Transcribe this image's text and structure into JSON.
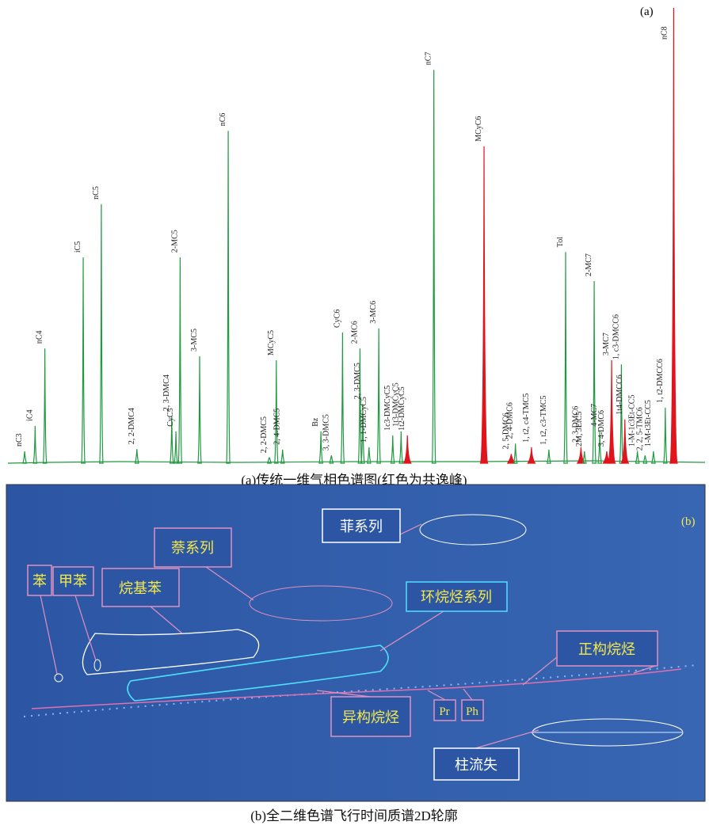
{
  "chart_data": {
    "type": "chromatogram",
    "panel_label": "(a)",
    "caption": "(a)传统一维气相色谱图(红色为共逸峰)",
    "xlim": [
      0,
      100
    ],
    "ylim": [
      0,
      100
    ],
    "colors": {
      "normal": "#1f9a3f",
      "coelution": "#e0141c"
    },
    "peaks": [
      {
        "label": "nC3",
        "x": 2.4,
        "value": 2.6,
        "coelution": false
      },
      {
        "label": "iC4",
        "x": 3.9,
        "value": 8.2,
        "coelution": false
      },
      {
        "label": "nC4",
        "x": 5.3,
        "value": 25.2,
        "coelution": false
      },
      {
        "label": "iC5",
        "x": 10.8,
        "value": 45.2,
        "coelution": false
      },
      {
        "label": "nC5",
        "x": 13.4,
        "value": 56.9,
        "coelution": false
      },
      {
        "label": "2, 2-DMC4",
        "x": 18.5,
        "value": 3.1,
        "coelution": false
      },
      {
        "label": "2, 3-DMC4",
        "x": 23.5,
        "value": 10.4,
        "coelution": false
      },
      {
        "label": "CyC5",
        "x": 24.1,
        "value": 7.0,
        "coelution": false
      },
      {
        "label": "2-MC5",
        "x": 24.7,
        "value": 45.2,
        "coelution": false
      },
      {
        "label": "3-MC5",
        "x": 27.5,
        "value": 23.5,
        "coelution": false
      },
      {
        "label": "nC6",
        "x": 31.6,
        "value": 73.0,
        "coelution": false
      },
      {
        "label": "2, 2-DMC5",
        "x": 37.5,
        "value": 1.2,
        "coelution": false
      },
      {
        "label": "MCyC5",
        "x": 38.5,
        "value": 22.6,
        "coelution": false
      },
      {
        "label": "2, 4-DMC5",
        "x": 39.4,
        "value": 3.0,
        "coelution": false
      },
      {
        "label": "Bz",
        "x": 44.9,
        "value": 7.0,
        "coelution": false
      },
      {
        "label": "3, 3-DMC5",
        "x": 46.4,
        "value": 1.7,
        "coelution": false
      },
      {
        "label": "CyC6",
        "x": 48.0,
        "value": 28.7,
        "coelution": false
      },
      {
        "label": "2-MC6",
        "x": 50.5,
        "value": 25.2,
        "coelution": false
      },
      {
        "label": "2, 3-DMC5",
        "x": 50.9,
        "value": 13.0,
        "coelution": false
      },
      {
        "label": "1, 1-DMCyC5",
        "x": 51.8,
        "value": 3.5,
        "coelution": false
      },
      {
        "label": "3-MC6",
        "x": 53.2,
        "value": 29.6,
        "coelution": false
      },
      {
        "label": "1c3-DMCyC5",
        "x": 55.2,
        "value": 6.1,
        "coelution": false
      },
      {
        "label": "1t3-DMCyC5",
        "x": 56.4,
        "value": 7.0,
        "coelution": false
      },
      {
        "label": "1t2-DMCyC5",
        "x": 57.3,
        "value": 6.1,
        "coelution": true
      },
      {
        "label": "nC7",
        "x": 61.1,
        "value": 86.4,
        "coelution": false
      },
      {
        "label": "MCyC6",
        "x": 68.3,
        "value": 69.6,
        "coelution": true
      },
      {
        "label": "2, 5-DMC6",
        "x": 72.2,
        "value": 2.0,
        "coelution": true
      },
      {
        "label": "2, 4-DMC6",
        "x": 72.8,
        "value": 4.3,
        "coelution": false
      },
      {
        "label": "1, t2, c4-TMC5",
        "x": 75.1,
        "value": 3.5,
        "coelution": true
      },
      {
        "label": "1, t2, c3-TMC5",
        "x": 77.6,
        "value": 3.0,
        "coelution": false
      },
      {
        "label": "Tol",
        "x": 80.0,
        "value": 46.4,
        "coelution": false
      },
      {
        "label": "2, 3-DMC6",
        "x": 82.2,
        "value": 3.5,
        "coelution": true
      },
      {
        "label": "2M, 3EtC5",
        "x": 82.7,
        "value": 2.6,
        "coelution": false
      },
      {
        "label": "2-MC7",
        "x": 84.1,
        "value": 40.0,
        "coelution": false
      },
      {
        "label": "4-MC7",
        "x": 84.9,
        "value": 7.0,
        "coelution": false
      },
      {
        "label": "3, 4-DMC6",
        "x": 85.9,
        "value": 2.6,
        "coelution": true
      },
      {
        "label": "3-MC7",
        "x": 86.6,
        "value": 22.6,
        "coelution": true
      },
      {
        "label": "1, c3-DMCC6",
        "x": 88.0,
        "value": 21.7,
        "coelution": false
      },
      {
        "label": "1t4-DMCC6",
        "x": 88.5,
        "value": 9.6,
        "coelution": true
      },
      {
        "label": "1-M-1c3Et-CC5",
        "x": 90.3,
        "value": 2.6,
        "coelution": false
      },
      {
        "label": "2, 2, 5-TMC6",
        "x": 91.4,
        "value": 1.7,
        "coelution": false
      },
      {
        "label": "1-M-t3Et-CC5",
        "x": 92.6,
        "value": 2.6,
        "coelution": false
      },
      {
        "label": "1, t2-DMCC6",
        "x": 94.3,
        "value": 12.2,
        "coelution": false
      },
      {
        "label": "nC8",
        "x": 95.5,
        "value": 100,
        "coelution": true
      }
    ]
  },
  "panel_b": {
    "panel_label": "(b)",
    "caption": "(b)全二维色谱飞行时间质谱2D轮廓",
    "labels": {
      "phenanthrene": "菲系列",
      "naphthalene": "萘系列",
      "alkylbenzene": "烷基苯",
      "benzene": "苯",
      "toluene": "甲苯",
      "cycloalkane": "环烷烃系列",
      "n_alkane": "正构烷烃",
      "iso_alkane": "异构烷烃",
      "pr": "Pr",
      "ph": "Ph",
      "column_bleed": "柱流失"
    }
  }
}
